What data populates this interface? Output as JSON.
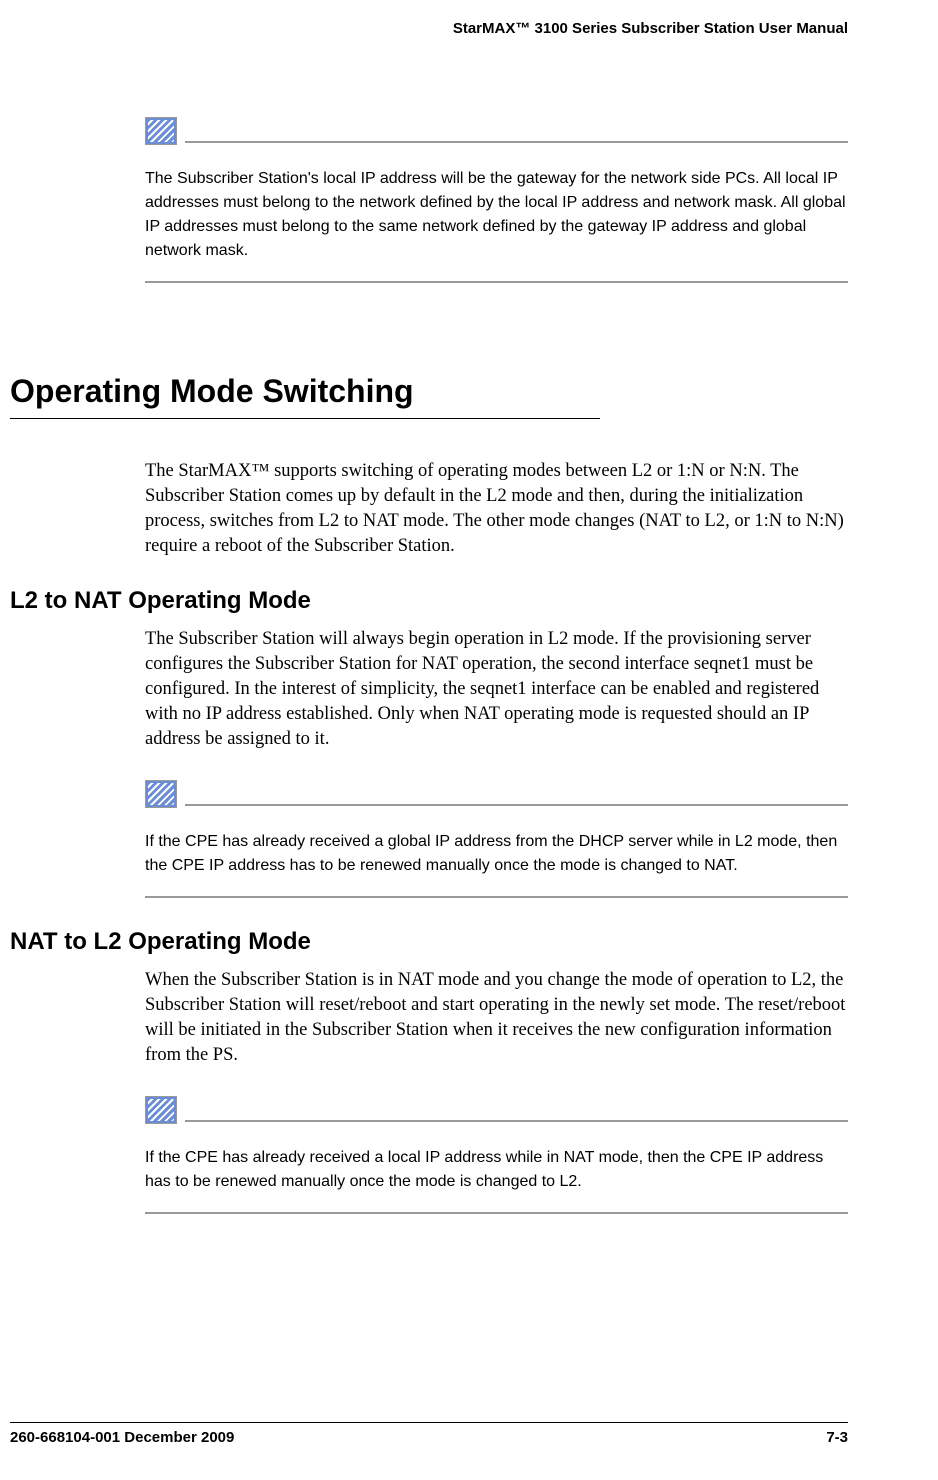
{
  "header": {
    "title": "StarMAX™ 3100 Series Subscriber Station User Manual"
  },
  "note1": {
    "text": "The Subscriber Station's local IP address will be the gateway for the network side PCs. All local IP addresses must belong to the network defined by the local IP address and network mask. All global IP addresses must belong to the same network defined by the gateway IP address and global network mask."
  },
  "section1": {
    "title": "Operating Mode Switching",
    "intro": "The StarMAX™ supports switching of operating modes between L2 or 1:N or N:N. The Subscriber Station comes up by default in the L2 mode and then, during the initialization process, switches from L2 to NAT mode. The other mode changes (NAT to L2, or 1:N to N:N) require a reboot of the Subscriber Station."
  },
  "subsection1": {
    "title": "L2 to NAT Operating Mode",
    "body": "The Subscriber Station will always begin operation in L2 mode. If the provisioning server configures the Subscriber Station for NAT operation, the second interface seqnet1 must be configured. In the interest of simplicity, the seqnet1 interface can be enabled and registered with no IP address established. Only when NAT operating mode is requested should an IP address be assigned to it."
  },
  "note2": {
    "text": "If the CPE has already received a global IP address from the DHCP server while in L2 mode, then the CPE IP address has to be renewed manually once the mode is changed to NAT."
  },
  "subsection2": {
    "title": "NAT to L2 Operating Mode",
    "body": "When the Subscriber Station is in NAT mode and you change the mode of operation to L2, the Subscriber Station will reset/reboot and start operating in the newly set mode. The reset/reboot will be initiated in the Subscriber Station when it receives the new configuration information from the PS."
  },
  "note3": {
    "text": "If the CPE has already received a local IP address while in NAT mode, then the CPE IP address has to be renewed manually once the mode is changed to L2."
  },
  "footer": {
    "left": "260-668104-001 December 2009",
    "right": "7-3"
  }
}
